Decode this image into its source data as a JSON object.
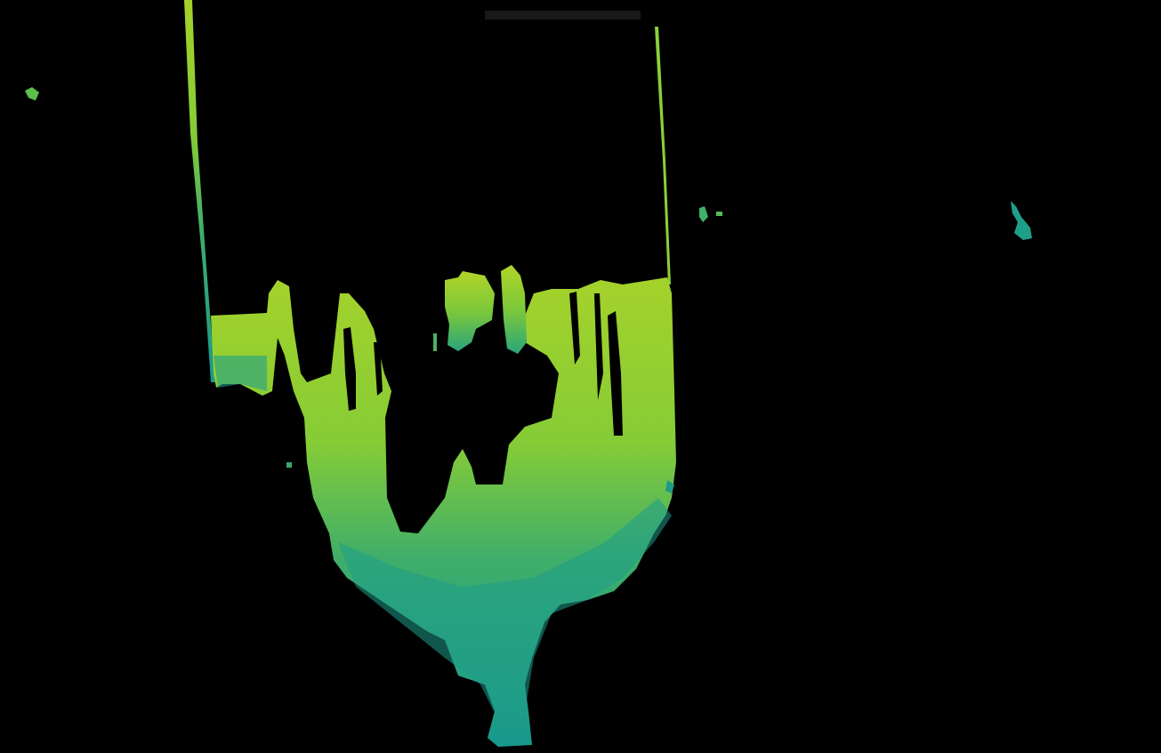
{
  "image": {
    "background_color": "#000000",
    "palette": {
      "bright": "#9acd2a",
      "mid": "#52b84e",
      "deep": "#1e9e8c",
      "line": "#7ed957"
    }
  }
}
